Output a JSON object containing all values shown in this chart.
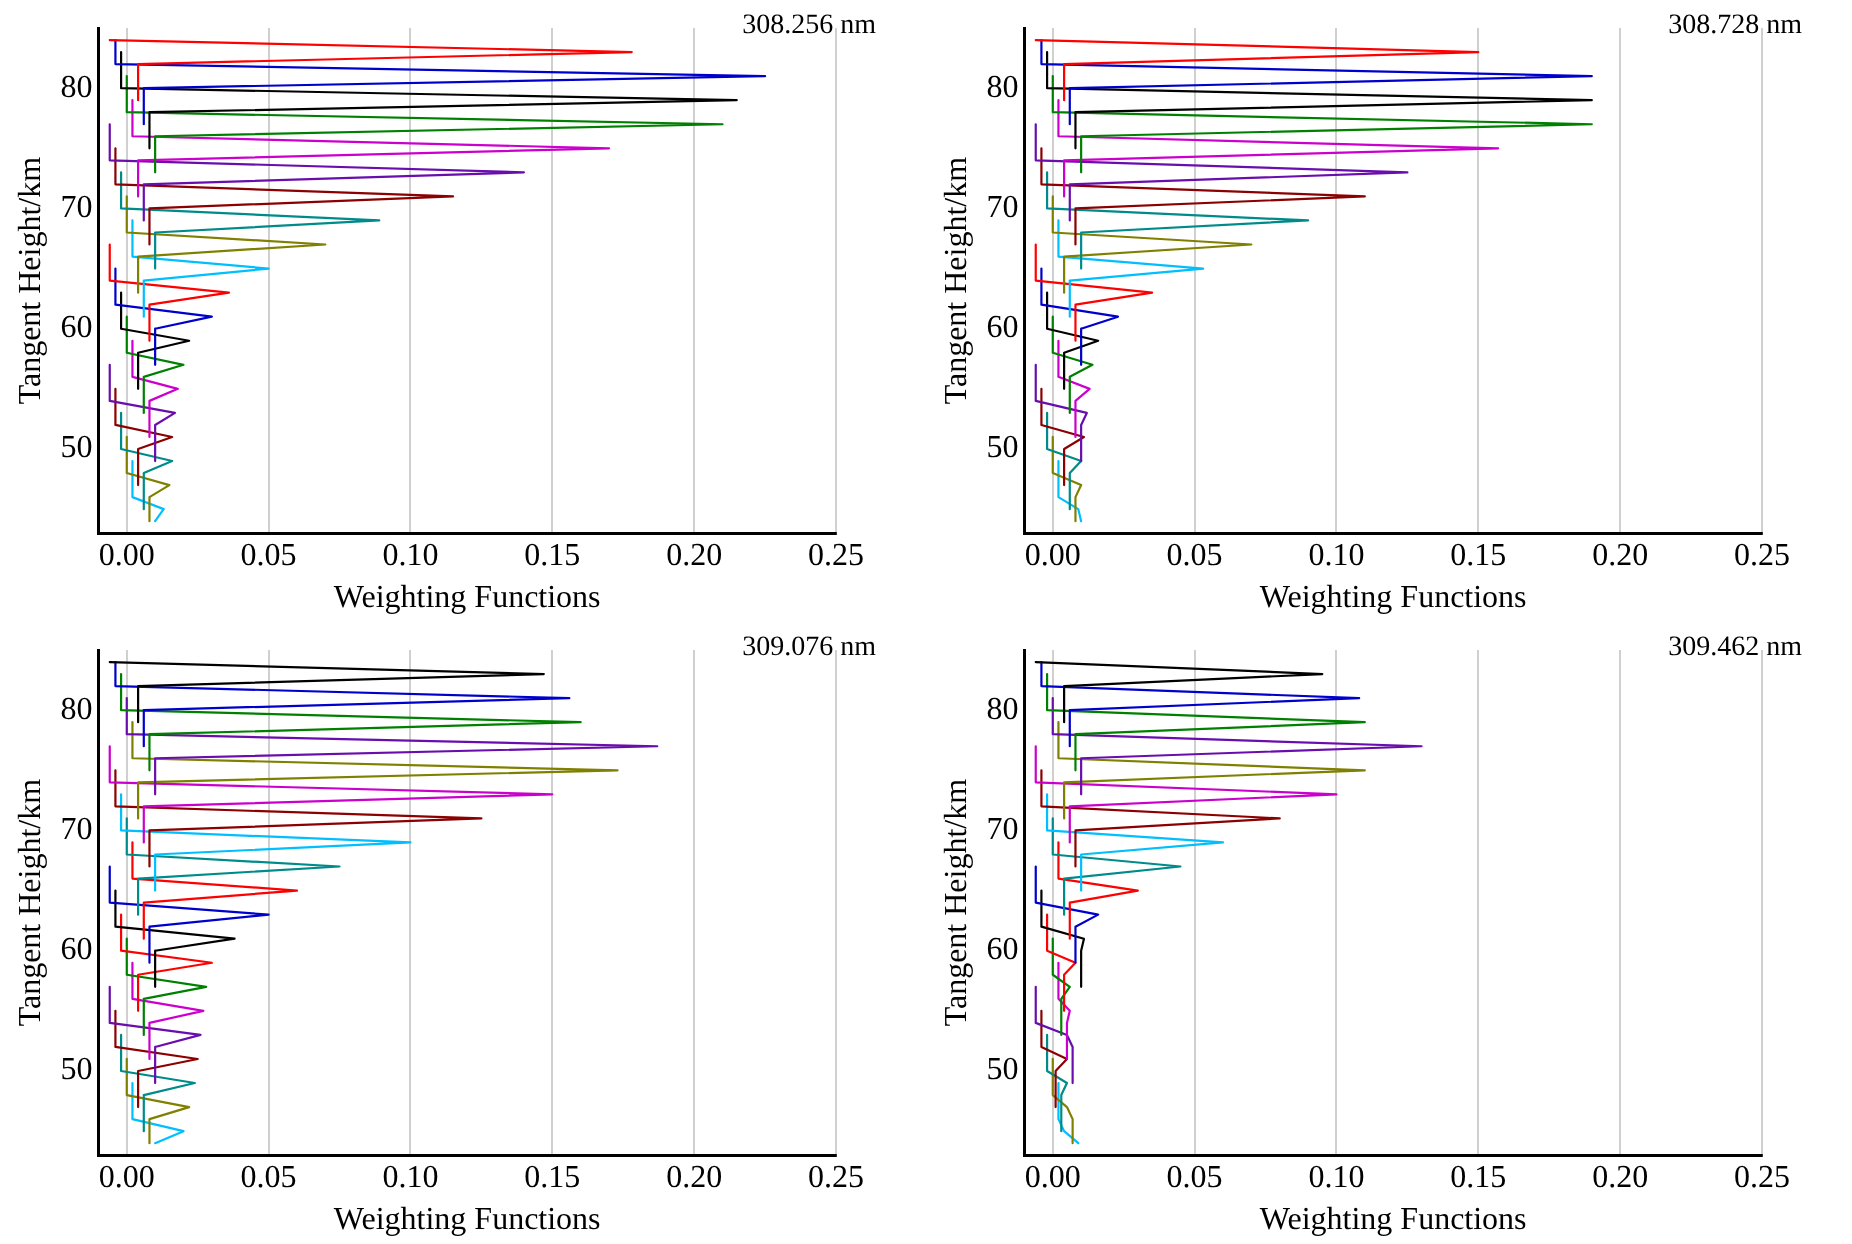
{
  "chart_data": [
    {
      "type": "line",
      "xlabel": "Weighting Functions",
      "ylabel": "Tangent Height/km",
      "annotations": [
        "308.256 nm"
      ],
      "xlim": [
        -0.01,
        0.25
      ],
      "ylim": [
        43,
        85
      ],
      "xticks": [
        {
          "value": 0,
          "label": "0.00"
        },
        {
          "value": 0.05,
          "label": "0.05"
        },
        {
          "value": 0.1,
          "label": "0.10"
        },
        {
          "value": 0.15,
          "label": "0.15"
        },
        {
          "value": 0.2,
          "label": "0.20"
        },
        {
          "value": 0.25,
          "label": "0.25"
        }
      ],
      "yticks": [
        50,
        60,
        70,
        80
      ],
      "grid": "x",
      "legend": false,
      "marker": "none",
      "line_style": "solid",
      "series": [
        {
          "color": "#ff0000",
          "x": [
            -0.006,
            0.178,
            0.004,
            0.004
          ],
          "values": [
            84,
            83,
            82,
            79
          ]
        },
        {
          "color": "#0000cc",
          "x": [
            -0.004,
            -0.004,
            0.225,
            0.006,
            0.006
          ],
          "values": [
            84,
            82,
            81,
            80,
            77
          ]
        },
        {
          "color": "#000000",
          "x": [
            -0.002,
            -0.002,
            0.215,
            0.008,
            0.008
          ],
          "values": [
            83,
            80,
            79,
            78,
            75
          ]
        },
        {
          "color": "#008000",
          "x": [
            0,
            0,
            0.21,
            0.01,
            0.01
          ],
          "values": [
            81,
            78,
            77,
            76,
            73
          ]
        },
        {
          "color": "#cc00cc",
          "x": [
            0.002,
            0.002,
            0.17,
            0.004,
            0.004
          ],
          "values": [
            79,
            76,
            75,
            74,
            71
          ]
        },
        {
          "color": "#6a0dad",
          "x": [
            -0.006,
            -0.006,
            0.14,
            0.006,
            0.006
          ],
          "values": [
            77,
            74,
            73,
            72,
            69
          ]
        },
        {
          "color": "#8b0000",
          "x": [
            -0.004,
            -0.004,
            0.115,
            0.008,
            0.008
          ],
          "values": [
            75,
            72,
            71,
            70,
            67
          ]
        },
        {
          "color": "#008b8b",
          "x": [
            -0.002,
            -0.002,
            0.089,
            0.01,
            0.01
          ],
          "values": [
            73,
            70,
            69,
            68,
            65
          ]
        },
        {
          "color": "#808000",
          "x": [
            0,
            0,
            0.07,
            0.004,
            0.004
          ],
          "values": [
            71,
            68,
            67,
            66,
            63
          ]
        },
        {
          "color": "#00bfff",
          "x": [
            0.002,
            0.002,
            0.05,
            0.006,
            0.006
          ],
          "values": [
            69,
            66,
            65,
            64,
            61
          ]
        },
        {
          "color": "#ff0000",
          "x": [
            -0.006,
            -0.006,
            0.036,
            0.008,
            0.008
          ],
          "values": [
            67,
            64,
            63,
            62,
            59
          ]
        },
        {
          "color": "#0000cc",
          "x": [
            -0.004,
            -0.004,
            0.03,
            0.01,
            0.01
          ],
          "values": [
            65,
            62,
            61,
            60,
            57
          ]
        },
        {
          "color": "#000000",
          "x": [
            -0.002,
            -0.002,
            0.022,
            0.004,
            0.004
          ],
          "values": [
            63,
            60,
            59,
            58,
            55
          ]
        },
        {
          "color": "#008000",
          "x": [
            0,
            0,
            0.02,
            0.006,
            0.006
          ],
          "values": [
            61,
            58,
            57,
            56,
            53
          ]
        },
        {
          "color": "#cc00cc",
          "x": [
            0.002,
            0.002,
            0.018,
            0.008,
            0.008
          ],
          "values": [
            59,
            56,
            55,
            54,
            51
          ]
        },
        {
          "color": "#6a0dad",
          "x": [
            -0.006,
            -0.006,
            0.017,
            0.01,
            0.01
          ],
          "values": [
            57,
            54,
            53,
            52,
            49
          ]
        },
        {
          "color": "#8b0000",
          "x": [
            -0.004,
            -0.004,
            0.016,
            0.004,
            0.004
          ],
          "values": [
            55,
            52,
            51,
            50,
            47
          ]
        },
        {
          "color": "#008b8b",
          "x": [
            -0.002,
            -0.002,
            0.016,
            0.006,
            0.006
          ],
          "values": [
            53,
            50,
            49,
            48,
            45
          ]
        },
        {
          "color": "#808000",
          "x": [
            0,
            0,
            0.015,
            0.008,
            0.008
          ],
          "values": [
            51,
            48,
            47,
            46,
            44
          ]
        },
        {
          "color": "#00bfff",
          "x": [
            0.002,
            0.002,
            0.013,
            0.01
          ],
          "values": [
            49,
            46,
            45,
            44
          ]
        }
      ]
    },
    {
      "type": "line",
      "xlabel": "Weighting Functions",
      "ylabel": "Tangent Height/km",
      "annotations": [
        "308.728 nm"
      ],
      "xlim": [
        -0.01,
        0.25
      ],
      "ylim": [
        43,
        85
      ],
      "xticks": [
        {
          "value": 0,
          "label": "0.00"
        },
        {
          "value": 0.05,
          "label": "0.05"
        },
        {
          "value": 0.1,
          "label": "0.10"
        },
        {
          "value": 0.15,
          "label": "0.15"
        },
        {
          "value": 0.2,
          "label": "0.20"
        },
        {
          "value": 0.25,
          "label": "0.25"
        }
      ],
      "yticks": [
        50,
        60,
        70,
        80
      ],
      "grid": "x",
      "legend": false,
      "marker": "none",
      "line_style": "solid",
      "series": [
        {
          "color": "#ff0000",
          "x": [
            -0.006,
            0.15,
            0.004,
            0.004
          ],
          "values": [
            84,
            83,
            82,
            79
          ]
        },
        {
          "color": "#0000cc",
          "x": [
            -0.004,
            -0.004,
            0.19,
            0.006,
            0.006
          ],
          "values": [
            84,
            82,
            81,
            80,
            77
          ]
        },
        {
          "color": "#000000",
          "x": [
            -0.002,
            -0.002,
            0.19,
            0.008,
            0.008
          ],
          "values": [
            83,
            80,
            79,
            78,
            75
          ]
        },
        {
          "color": "#008000",
          "x": [
            0,
            0,
            0.19,
            0.01,
            0.01
          ],
          "values": [
            81,
            78,
            77,
            76,
            73
          ]
        },
        {
          "color": "#cc00cc",
          "x": [
            0.002,
            0.002,
            0.157,
            0.004,
            0.004
          ],
          "values": [
            79,
            76,
            75,
            74,
            71
          ]
        },
        {
          "color": "#6a0dad",
          "x": [
            -0.006,
            -0.006,
            0.125,
            0.006,
            0.006
          ],
          "values": [
            77,
            74,
            73,
            72,
            69
          ]
        },
        {
          "color": "#8b0000",
          "x": [
            -0.004,
            -0.004,
            0.11,
            0.008,
            0.008
          ],
          "values": [
            75,
            72,
            71,
            70,
            67
          ]
        },
        {
          "color": "#008b8b",
          "x": [
            -0.002,
            -0.002,
            0.09,
            0.01,
            0.01
          ],
          "values": [
            73,
            70,
            69,
            68,
            65
          ]
        },
        {
          "color": "#808000",
          "x": [
            0,
            0,
            0.07,
            0.004,
            0.004
          ],
          "values": [
            71,
            68,
            67,
            66,
            63
          ]
        },
        {
          "color": "#00bfff",
          "x": [
            0.002,
            0.002,
            0.053,
            0.006,
            0.006
          ],
          "values": [
            69,
            66,
            65,
            64,
            61
          ]
        },
        {
          "color": "#ff0000",
          "x": [
            -0.006,
            -0.006,
            0.035,
            0.008,
            0.008
          ],
          "values": [
            67,
            64,
            63,
            62,
            59
          ]
        },
        {
          "color": "#0000cc",
          "x": [
            -0.004,
            -0.004,
            0.023,
            0.01,
            0.01
          ],
          "values": [
            65,
            62,
            61,
            60,
            57
          ]
        },
        {
          "color": "#000000",
          "x": [
            -0.002,
            -0.002,
            0.016,
            0.004,
            0.004
          ],
          "values": [
            63,
            60,
            59,
            58,
            55
          ]
        },
        {
          "color": "#008000",
          "x": [
            0,
            0,
            0.014,
            0.006,
            0.006
          ],
          "values": [
            61,
            58,
            57,
            56,
            53
          ]
        },
        {
          "color": "#cc00cc",
          "x": [
            0.002,
            0.002,
            0.013,
            0.008,
            0.008
          ],
          "values": [
            59,
            56,
            55,
            54,
            51
          ]
        },
        {
          "color": "#6a0dad",
          "x": [
            -0.006,
            -0.006,
            0.012,
            0.01,
            0.01
          ],
          "values": [
            57,
            54,
            53,
            52,
            49
          ]
        },
        {
          "color": "#8b0000",
          "x": [
            -0.004,
            -0.004,
            0.011,
            0.004,
            0.004
          ],
          "values": [
            55,
            52,
            51,
            50,
            47
          ]
        },
        {
          "color": "#008b8b",
          "x": [
            -0.002,
            -0.002,
            0.01,
            0.006,
            0.006
          ],
          "values": [
            53,
            50,
            49,
            48,
            45
          ]
        },
        {
          "color": "#808000",
          "x": [
            0,
            0,
            0.01,
            0.008,
            0.008
          ],
          "values": [
            51,
            48,
            47,
            46,
            44
          ]
        },
        {
          "color": "#00bfff",
          "x": [
            0.002,
            0.002,
            0.009,
            0.01
          ],
          "values": [
            49,
            46,
            45,
            44
          ]
        }
      ]
    },
    {
      "type": "line",
      "xlabel": "Weighting Functions",
      "ylabel": "Tangent Height/km",
      "annotations": [
        "309.076 nm"
      ],
      "xlim": [
        -0.01,
        0.25
      ],
      "ylim": [
        43,
        85
      ],
      "xticks": [
        {
          "value": 0,
          "label": "0.00"
        },
        {
          "value": 0.05,
          "label": "0.05"
        },
        {
          "value": 0.1,
          "label": "0.10"
        },
        {
          "value": 0.15,
          "label": "0.15"
        },
        {
          "value": 0.2,
          "label": "0.20"
        },
        {
          "value": 0.25,
          "label": "0.25"
        }
      ],
      "yticks": [
        50,
        60,
        70,
        80
      ],
      "grid": "x",
      "legend": false,
      "marker": "none",
      "line_style": "solid",
      "series": [
        {
          "color": "#000000",
          "x": [
            -0.006,
            0.147,
            0.004,
            0.004
          ],
          "values": [
            84,
            83,
            82,
            79
          ]
        },
        {
          "color": "#0000cc",
          "x": [
            -0.004,
            -0.004,
            0.156,
            0.006,
            0.006
          ],
          "values": [
            84,
            82,
            81,
            80,
            77
          ]
        },
        {
          "color": "#008000",
          "x": [
            -0.002,
            -0.002,
            0.16,
            0.008,
            0.008
          ],
          "values": [
            83,
            80,
            79,
            78,
            75
          ]
        },
        {
          "color": "#6a0dad",
          "x": [
            0,
            0,
            0.187,
            0.01,
            0.01
          ],
          "values": [
            81,
            78,
            77,
            76,
            73
          ]
        },
        {
          "color": "#808000",
          "x": [
            0.002,
            0.002,
            0.173,
            0.004,
            0.004
          ],
          "values": [
            79,
            76,
            75,
            74,
            71
          ]
        },
        {
          "color": "#cc00cc",
          "x": [
            -0.006,
            -0.006,
            0.15,
            0.006,
            0.006
          ],
          "values": [
            77,
            74,
            73,
            72,
            69
          ]
        },
        {
          "color": "#8b0000",
          "x": [
            -0.004,
            -0.004,
            0.125,
            0.008,
            0.008
          ],
          "values": [
            75,
            72,
            71,
            70,
            67
          ]
        },
        {
          "color": "#00bfff",
          "x": [
            -0.002,
            -0.002,
            0.1,
            0.01,
            0.01
          ],
          "values": [
            73,
            70,
            69,
            68,
            65
          ]
        },
        {
          "color": "#008b8b",
          "x": [
            0,
            0,
            0.075,
            0.004,
            0.004
          ],
          "values": [
            71,
            68,
            67,
            66,
            63
          ]
        },
        {
          "color": "#ff0000",
          "x": [
            0.002,
            0.002,
            0.06,
            0.006,
            0.006
          ],
          "values": [
            69,
            66,
            65,
            64,
            61
          ]
        },
        {
          "color": "#0000cc",
          "x": [
            -0.006,
            -0.006,
            0.05,
            0.008,
            0.008
          ],
          "values": [
            67,
            64,
            63,
            62,
            59
          ]
        },
        {
          "color": "#000000",
          "x": [
            -0.004,
            -0.004,
            0.038,
            0.01,
            0.01
          ],
          "values": [
            65,
            62,
            61,
            60,
            57
          ]
        },
        {
          "color": "#ff0000",
          "x": [
            -0.002,
            -0.002,
            0.03,
            0.004,
            0.004
          ],
          "values": [
            63,
            60,
            59,
            58,
            55
          ]
        },
        {
          "color": "#008000",
          "x": [
            0,
            0,
            0.028,
            0.006,
            0.006
          ],
          "values": [
            61,
            58,
            57,
            56,
            53
          ]
        },
        {
          "color": "#cc00cc",
          "x": [
            0.002,
            0.002,
            0.027,
            0.008,
            0.008
          ],
          "values": [
            59,
            56,
            55,
            54,
            51
          ]
        },
        {
          "color": "#6a0dad",
          "x": [
            -0.006,
            -0.006,
            0.026,
            0.01,
            0.01
          ],
          "values": [
            57,
            54,
            53,
            52,
            49
          ]
        },
        {
          "color": "#8b0000",
          "x": [
            -0.004,
            -0.004,
            0.025,
            0.004,
            0.004
          ],
          "values": [
            55,
            52,
            51,
            50,
            47
          ]
        },
        {
          "color": "#008b8b",
          "x": [
            -0.002,
            -0.002,
            0.024,
            0.006,
            0.006
          ],
          "values": [
            53,
            50,
            49,
            48,
            45
          ]
        },
        {
          "color": "#808000",
          "x": [
            0,
            0,
            0.022,
            0.008,
            0.008
          ],
          "values": [
            51,
            48,
            47,
            46,
            44
          ]
        },
        {
          "color": "#00bfff",
          "x": [
            0.002,
            0.002,
            0.02,
            0.01
          ],
          "values": [
            49,
            46,
            45,
            44
          ]
        }
      ]
    },
    {
      "type": "line",
      "xlabel": "Weighting Functions",
      "ylabel": "Tangent Height/km",
      "annotations": [
        "309.462 nm"
      ],
      "xlim": [
        -0.01,
        0.25
      ],
      "ylim": [
        43,
        85
      ],
      "xticks": [
        {
          "value": 0,
          "label": "0.00"
        },
        {
          "value": 0.05,
          "label": "0.05"
        },
        {
          "value": 0.1,
          "label": "0.10"
        },
        {
          "value": 0.15,
          "label": "0.15"
        },
        {
          "value": 0.2,
          "label": "0.20"
        },
        {
          "value": 0.25,
          "label": "0.25"
        }
      ],
      "yticks": [
        50,
        60,
        70,
        80
      ],
      "grid": "x",
      "legend": false,
      "marker": "none",
      "line_style": "solid",
      "series": [
        {
          "color": "#000000",
          "x": [
            -0.006,
            0.095,
            0.004,
            0.004
          ],
          "values": [
            84,
            83,
            82,
            79
          ]
        },
        {
          "color": "#0000cc",
          "x": [
            -0.004,
            -0.004,
            0.108,
            0.006,
            0.006
          ],
          "values": [
            84,
            82,
            81,
            80,
            77
          ]
        },
        {
          "color": "#008000",
          "x": [
            -0.002,
            -0.002,
            0.11,
            0.008,
            0.008
          ],
          "values": [
            83,
            80,
            79,
            78,
            75
          ]
        },
        {
          "color": "#6a0dad",
          "x": [
            0,
            0,
            0.13,
            0.01,
            0.01
          ],
          "values": [
            81,
            78,
            77,
            76,
            73
          ]
        },
        {
          "color": "#808000",
          "x": [
            0.002,
            0.002,
            0.11,
            0.004,
            0.004
          ],
          "values": [
            79,
            76,
            75,
            74,
            71
          ]
        },
        {
          "color": "#cc00cc",
          "x": [
            -0.006,
            -0.006,
            0.1,
            0.006,
            0.006
          ],
          "values": [
            77,
            74,
            73,
            72,
            69
          ]
        },
        {
          "color": "#8b0000",
          "x": [
            -0.004,
            -0.004,
            0.08,
            0.008,
            0.008
          ],
          "values": [
            75,
            72,
            71,
            70,
            67
          ]
        },
        {
          "color": "#00bfff",
          "x": [
            -0.002,
            -0.002,
            0.06,
            0.01,
            0.01
          ],
          "values": [
            73,
            70,
            69,
            68,
            65
          ]
        },
        {
          "color": "#008b8b",
          "x": [
            0,
            0,
            0.045,
            0.004,
            0.004
          ],
          "values": [
            71,
            68,
            67,
            66,
            63
          ]
        },
        {
          "color": "#ff0000",
          "x": [
            0.002,
            0.002,
            0.03,
            0.006,
            0.006
          ],
          "values": [
            69,
            66,
            65,
            64,
            61
          ]
        },
        {
          "color": "#0000cc",
          "x": [
            -0.006,
            -0.006,
            0.016,
            0.008,
            0.008
          ],
          "values": [
            67,
            64,
            63,
            62,
            59
          ]
        },
        {
          "color": "#000000",
          "x": [
            -0.004,
            -0.004,
            0.011,
            0.01,
            0.01
          ],
          "values": [
            65,
            62,
            61,
            60,
            57
          ]
        },
        {
          "color": "#ff0000",
          "x": [
            -0.002,
            -0.002,
            0.008,
            0.004,
            0.004
          ],
          "values": [
            63,
            60,
            59,
            58,
            55
          ]
        },
        {
          "color": "#008000",
          "x": [
            0,
            0,
            0.006,
            0.003,
            0.003
          ],
          "values": [
            61,
            58,
            57,
            56,
            53
          ]
        },
        {
          "color": "#cc00cc",
          "x": [
            0.002,
            0.002,
            0.006,
            0.005,
            0.005
          ],
          "values": [
            59,
            56,
            55,
            54,
            51
          ]
        },
        {
          "color": "#6a0dad",
          "x": [
            -0.006,
            -0.006,
            0.005,
            0.007,
            0.007
          ],
          "values": [
            57,
            54,
            53,
            52,
            49
          ]
        },
        {
          "color": "#8b0000",
          "x": [
            -0.004,
            -0.004,
            0.005,
            0.001,
            0.001
          ],
          "values": [
            55,
            52,
            51,
            50,
            47
          ]
        },
        {
          "color": "#008b8b",
          "x": [
            -0.002,
            -0.002,
            0.005,
            0.003,
            0.003
          ],
          "values": [
            53,
            50,
            49,
            48,
            45
          ]
        },
        {
          "color": "#808000",
          "x": [
            0,
            0,
            0.005,
            0.007,
            0.007
          ],
          "values": [
            51,
            48,
            47,
            46,
            44
          ]
        },
        {
          "color": "#00bfff",
          "x": [
            0.002,
            0.002,
            0.004,
            0.009
          ],
          "values": [
            49,
            46,
            45,
            44
          ]
        }
      ]
    }
  ]
}
